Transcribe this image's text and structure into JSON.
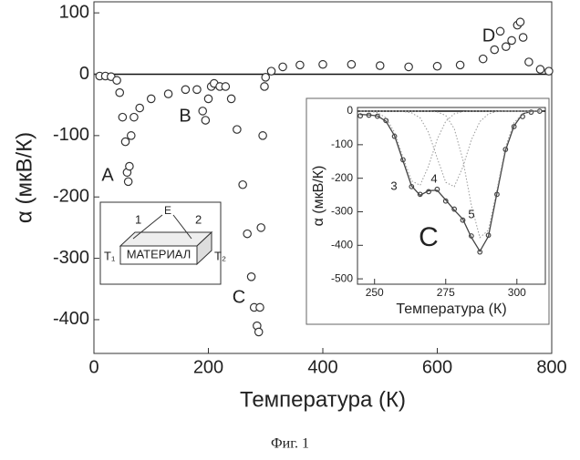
{
  "chart_data": [
    {
      "type": "scatter",
      "xlabel": "Температура (К)",
      "ylabel": "α (мкВ/К)",
      "xlim": [
        0,
        800
      ],
      "xticks": [
        0,
        200,
        400,
        600,
        800
      ],
      "ylim": [
        -455,
        118
      ],
      "yticks": [
        -400,
        -300,
        -200,
        -100,
        0,
        100
      ],
      "x": [
        10,
        20,
        30,
        40,
        45,
        50,
        55,
        58,
        60,
        62,
        65,
        70,
        80,
        100,
        130,
        160,
        180,
        190,
        195,
        200,
        205,
        210,
        220,
        230,
        240,
        250,
        260,
        268,
        275,
        280,
        285,
        288,
        290,
        292,
        295,
        298,
        300,
        310,
        330,
        360,
        400,
        450,
        500,
        550,
        600,
        640,
        680,
        700,
        710,
        720,
        730,
        740,
        745,
        750,
        760,
        780,
        795
      ],
      "series": [
        {
          "color": "#333333",
          "mode": "markers",
          "values": [
            -3,
            -3,
            -4,
            -10,
            -30,
            -70,
            -110,
            -160,
            -175,
            -150,
            -100,
            -70,
            -55,
            -40,
            -32,
            -25,
            -25,
            -60,
            -75,
            -40,
            -20,
            -15,
            -20,
            -20,
            -40,
            -90,
            -180,
            -260,
            -330,
            -380,
            -410,
            -420,
            -380,
            -250,
            -100,
            -20,
            -5,
            5,
            12,
            15,
            16,
            16,
            14,
            12,
            13,
            15,
            25,
            40,
            70,
            45,
            55,
            80,
            85,
            60,
            20,
            8,
            5
          ]
        }
      ],
      "annotations": [
        "A",
        "B",
        "C",
        "D"
      ]
    },
    {
      "type": "scatter",
      "xlabel": "Температура (К)",
      "ylabel": "α (мкВ/К)",
      "xlim": [
        244,
        310
      ],
      "xticks": [
        250,
        275,
        300
      ],
      "ylim": [
        -516,
        11
      ],
      "yticks": [
        -500,
        -400,
        -300,
        -200,
        -100,
        0
      ],
      "x": [
        245,
        248,
        251,
        254,
        257,
        260,
        263,
        266,
        269,
        272,
        275,
        278,
        281,
        284,
        287,
        290,
        293,
        296,
        299,
        302,
        305,
        308
      ],
      "series": [
        {
          "color": "#444444",
          "mode": "markers",
          "values": [
            -14,
            -12,
            -15,
            -28,
            -75,
            -145,
            -225,
            -248,
            -240,
            -233,
            -268,
            -292,
            -325,
            -372,
            -420,
            -370,
            -248,
            -114,
            -46,
            -16,
            -3,
            0
          ]
        },
        {
          "color": "#444444",
          "mode": "lines",
          "values": [
            -10,
            -11,
            -14,
            -30,
            -73,
            -148,
            -223,
            -251,
            -237,
            -236,
            -265,
            -295,
            -322,
            -376,
            -418,
            -373,
            -245,
            -117,
            -44,
            -8,
            -1,
            0
          ]
        },
        {
          "color": "#999999",
          "mode": "dotted",
          "values": [
            0,
            -1,
            -4,
            -20,
            -63,
            -137,
            -208,
            -221,
            -163,
            -84,
            -30,
            -8,
            -1,
            0,
            0,
            0,
            0,
            0,
            0,
            0,
            0,
            0
          ]
        },
        {
          "color": "#999999",
          "mode": "dotted",
          "values": [
            0,
            0,
            0,
            0,
            0,
            -1,
            -5,
            -20,
            -64,
            -140,
            -212,
            -225,
            -167,
            -86,
            -31,
            -8,
            -1,
            0,
            0,
            0,
            0,
            0
          ]
        },
        {
          "color": "#999999",
          "mode": "dotted",
          "values": [
            0,
            0,
            0,
            0,
            0,
            0,
            0,
            0,
            0,
            -2,
            -13,
            -52,
            -144,
            -280,
            -377,
            -355,
            -234,
            -107,
            -34,
            -8,
            -1,
            0
          ]
        }
      ],
      "annotations": [
        "3",
        "4",
        "5",
        "C"
      ]
    }
  ],
  "schematic": {
    "labels": [
      "1",
      "E",
      "2",
      "T₁",
      "МАТЕРИАЛ",
      "T₂"
    ]
  },
  "caption": "Фиг. 1"
}
